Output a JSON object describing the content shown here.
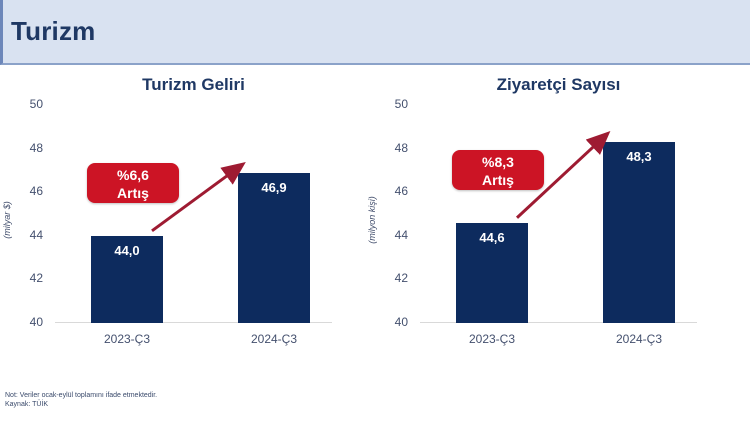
{
  "header": {
    "title": "Turizm"
  },
  "chart_data": [
    {
      "type": "bar",
      "title": "Turizm Geliri",
      "ylabel": "(milyar $)",
      "categories": [
        "2023-Ç3",
        "2024-Ç3"
      ],
      "values": [
        44.0,
        46.9
      ],
      "value_labels": [
        "44,0",
        "46,9"
      ],
      "ylim": [
        40,
        50
      ],
      "yticks": [
        50,
        48,
        46,
        44,
        42,
        40
      ],
      "annotation": {
        "line1": "%6,6",
        "line2": "Artış"
      },
      "grid": false,
      "legend": "none"
    },
    {
      "type": "bar",
      "title": "Ziyaretçi Sayısı",
      "ylabel": "(milyon kişi)",
      "categories": [
        "2023-Ç3",
        "2024-Ç3"
      ],
      "values": [
        44.6,
        48.3
      ],
      "value_labels": [
        "44,6",
        "48,3"
      ],
      "ylim": [
        40,
        50
      ],
      "yticks": [
        50,
        48,
        46,
        44,
        42,
        40
      ],
      "annotation": {
        "line1": "%8,3",
        "line2": "Artış"
      },
      "grid": false,
      "legend": "none"
    }
  ],
  "footer": {
    "note": "Not: Veriler ocak-eylül toplamını ifade etmektedir.",
    "source": "Kaynak: TÜİK"
  },
  "colors": {
    "bar": "#0d2b5e",
    "badge_bg": "#cc1425",
    "badge_text": "#ffffff",
    "arrow": "#9e1b32",
    "header_bg": "#d9e2f1",
    "title_text": "#1f3864",
    "axis_text": "#44506e",
    "baseline": "#d9d9d9"
  }
}
